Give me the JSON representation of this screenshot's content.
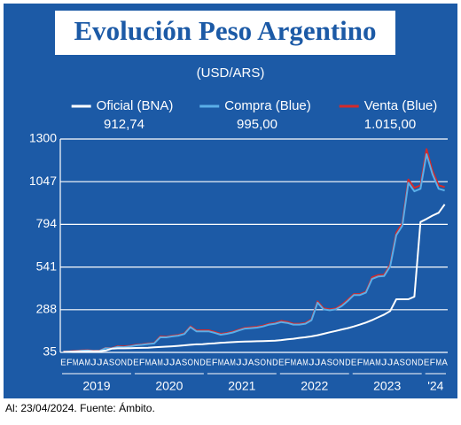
{
  "chart_data": {
    "type": "line",
    "title": "Evolución Peso Argentino",
    "subtitle": "(USD/ARS)",
    "footer": "Al: 23/04/2024. Fuente: Ámbito.",
    "categories": [
      "E",
      "F",
      "M",
      "A",
      "M",
      "J",
      "J",
      "A",
      "S",
      "O",
      "N",
      "D",
      "E",
      "F",
      "M",
      "A",
      "M",
      "J",
      "J",
      "A",
      "S",
      "O",
      "N",
      "D",
      "E",
      "F",
      "M",
      "A",
      "M",
      "J",
      "J",
      "A",
      "S",
      "O",
      "N",
      "D",
      "E",
      "F",
      "M",
      "A",
      "M",
      "J",
      "J",
      "A",
      "S",
      "O",
      "N",
      "D",
      "E",
      "F",
      "M",
      "A",
      "M",
      "J",
      "J",
      "A",
      "S",
      "O",
      "N",
      "D",
      "E",
      "F",
      "M",
      "A"
    ],
    "years": [
      "2019",
      "2020",
      "2021",
      "2022",
      "2023",
      "'24"
    ],
    "series": [
      {
        "name": "Venta (Blue)",
        "color": "#d42a2a",
        "current_label": "1.015,00",
        "values": [
          39,
          41,
          44,
          47,
          48,
          45,
          46,
          62,
          60,
          72,
          70,
          74,
          80,
          83,
          88,
          90,
          130,
          128,
          134,
          138,
          148,
          190,
          165,
          166,
          166,
          157,
          145,
          150,
          158,
          170,
          181,
          184,
          187,
          194,
          205,
          210,
          222,
          216,
          205,
          205,
          210,
          232,
          338,
          297,
          290,
          296,
          318,
          348,
          381,
          381,
          395,
          480,
          493,
          496,
          555,
          745,
          800,
          1060,
          1010,
          1025,
          1240,
          1110,
          1025,
          1015
        ]
      },
      {
        "name": "Compra (Blue)",
        "color": "#5aaee8",
        "current_label": "995,00",
        "values": [
          37,
          39,
          42,
          45,
          46,
          43,
          44,
          60,
          58,
          68,
          66,
          70,
          77,
          80,
          85,
          88,
          125,
          124,
          130,
          134,
          144,
          185,
          160,
          160,
          160,
          151,
          140,
          145,
          153,
          165,
          176,
          179,
          182,
          189,
          200,
          205,
          215,
          210,
          200,
          200,
          205,
          226,
          330,
          290,
          285,
          290,
          310,
          340,
          375,
          375,
          390,
          470,
          485,
          488,
          545,
          730,
          785,
          1040,
          990,
          1005,
          1210,
          1090,
          1005,
          995
        ]
      },
      {
        "name": "Oficial (BNA)",
        "color": "#ffffff",
        "current_label": "912,74",
        "values": [
          38,
          39,
          40,
          41,
          42,
          42,
          42,
          46,
          57,
          59,
          59,
          60,
          61,
          62,
          63,
          65,
          67,
          69,
          71,
          74,
          77,
          80,
          83,
          84,
          87,
          89,
          92,
          94,
          96,
          98,
          99,
          100,
          101,
          102,
          103,
          105,
          108,
          112,
          116,
          121,
          125,
          130,
          137,
          145,
          154,
          162,
          171,
          179,
          189,
          200,
          212,
          226,
          243,
          259,
          280,
          350,
          350,
          350,
          365,
          808,
          826,
          846,
          863,
          912.74
        ]
      }
    ],
    "ylim": [
      35,
      1300
    ],
    "yticks": [
      35,
      288,
      541,
      794,
      1047,
      1300
    ],
    "grid": true,
    "background": "#1c5aa6"
  }
}
